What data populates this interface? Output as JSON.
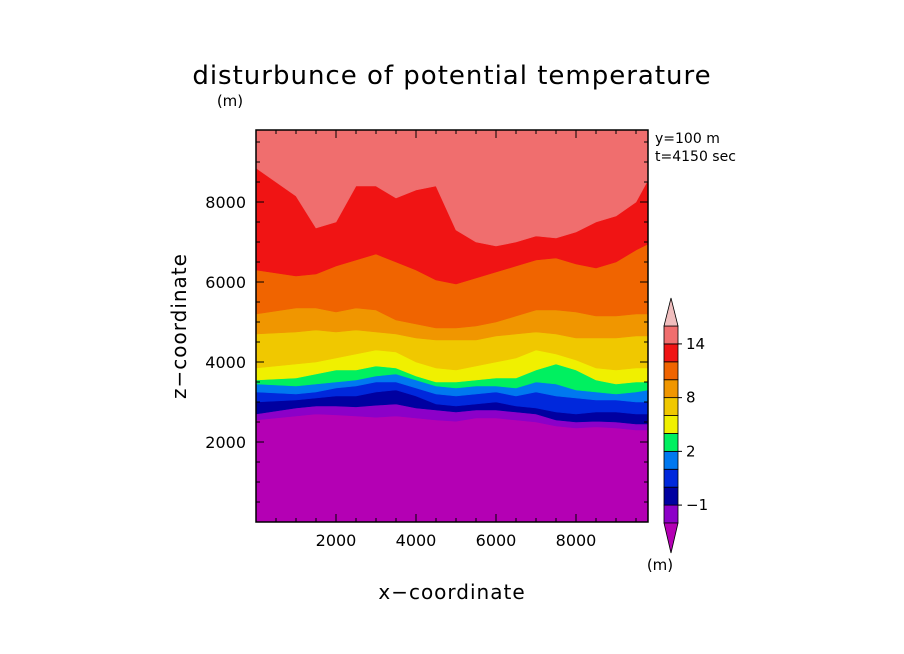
{
  "chart_data": {
    "type": "heatmap",
    "title": "disturbunce of potential temperature",
    "xlabel": "x−coordinate",
    "ylabel": "z−coordinate",
    "y_unit_label": "(m)",
    "colorbar_unit_label": "(m)",
    "annotations": [
      "y=100 m",
      "t=4150 sec"
    ],
    "xlim": [
      0,
      9800
    ],
    "ylim": [
      0,
      9800
    ],
    "x_ticks": [
      2000,
      4000,
      6000,
      8000
    ],
    "y_ticks": [
      2000,
      4000,
      6000,
      8000
    ],
    "x_tick_labels": [
      "2000",
      "4000",
      "6000",
      "8000"
    ],
    "y_tick_labels": [
      "2000",
      "4000",
      "6000",
      "8000"
    ],
    "colorbar": {
      "extend": "both",
      "levels": [
        -2,
        -1,
        0,
        1,
        2,
        4,
        6,
        8,
        10,
        12,
        14,
        16
      ],
      "tick_labels": [
        {
          "value": 14,
          "label": "14"
        },
        {
          "value": 8,
          "label": "8"
        },
        {
          "value": 2,
          "label": "2"
        },
        {
          "value": -1,
          "label": "−1"
        }
      ],
      "colors": [
        "#b400b4",
        "#8c00c8",
        "#0000a0",
        "#0028dc",
        "#0078f0",
        "#00f060",
        "#f0f000",
        "#f0c800",
        "#f09600",
        "#f06400",
        "#f01414",
        "#f06e6e",
        "#f0bebe"
      ]
    },
    "x_samples": [
      0,
      1000,
      1500,
      2000,
      2500,
      3000,
      3500,
      4000,
      4500,
      5000,
      5500,
      6000,
      6500,
      7000,
      7500,
      8000,
      8500,
      9000,
      9500,
      9800
    ],
    "contours": [
      {
        "level": -1,
        "z": [
          2550,
          2650,
          2700,
          2680,
          2650,
          2620,
          2650,
          2600,
          2550,
          2520,
          2600,
          2600,
          2550,
          2500,
          2400,
          2350,
          2380,
          2350,
          2300,
          2300
        ]
      },
      {
        "level": 0,
        "z": [
          2700,
          2850,
          2900,
          2900,
          2880,
          2920,
          2950,
          2850,
          2800,
          2750,
          2800,
          2800,
          2750,
          2700,
          2550,
          2500,
          2520,
          2500,
          2450,
          2450
        ]
      },
      {
        "level": 1,
        "z": [
          3000,
          3050,
          3100,
          3150,
          3150,
          3250,
          3300,
          3150,
          2950,
          2900,
          2950,
          3000,
          2900,
          2850,
          2750,
          2700,
          2750,
          2750,
          2700,
          2700
        ]
      },
      {
        "level": 2,
        "z": [
          3250,
          3200,
          3250,
          3350,
          3400,
          3500,
          3500,
          3350,
          3200,
          3150,
          3200,
          3250,
          3150,
          3250,
          3150,
          3100,
          3050,
          3050,
          3000,
          3000
        ]
      },
      {
        "level": 4,
        "z": [
          3450,
          3400,
          3450,
          3500,
          3550,
          3650,
          3700,
          3550,
          3400,
          3350,
          3400,
          3400,
          3350,
          3500,
          3450,
          3300,
          3250,
          3200,
          3250,
          3300
        ]
      },
      {
        "level": 6,
        "z": [
          3550,
          3600,
          3700,
          3800,
          3800,
          3900,
          3850,
          3650,
          3500,
          3500,
          3550,
          3600,
          3600,
          3800,
          3950,
          3800,
          3550,
          3450,
          3500,
          3500
        ]
      },
      {
        "level": 8,
        "z": [
          3850,
          3950,
          4000,
          4100,
          4200,
          4300,
          4250,
          4000,
          3850,
          3800,
          3900,
          4000,
          4100,
          4300,
          4200,
          4050,
          3850,
          3800,
          3850,
          3850
        ]
      },
      {
        "level": 10,
        "z": [
          4700,
          4750,
          4800,
          4750,
          4800,
          4750,
          4700,
          4600,
          4550,
          4550,
          4550,
          4650,
          4700,
          4750,
          4700,
          4600,
          4600,
          4600,
          4650,
          4650
        ]
      },
      {
        "level": 12,
        "z": [
          5200,
          5350,
          5350,
          5250,
          5350,
          5300,
          5050,
          4950,
          4850,
          4850,
          4900,
          5000,
          5150,
          5300,
          5300,
          5250,
          5150,
          5150,
          5200,
          5200
        ]
      },
      {
        "level": 14,
        "z": [
          6300,
          6150,
          6200,
          6400,
          6550,
          6700,
          6500,
          6300,
          6050,
          5950,
          6100,
          6250,
          6400,
          6550,
          6600,
          6450,
          6350,
          6500,
          6800,
          6950
        ]
      },
      {
        "level": 16,
        "z": [
          8850,
          8150,
          7350,
          7500,
          8400,
          8400,
          8100,
          8300,
          8400,
          7300,
          7000,
          6900,
          7000,
          7150,
          7100,
          7250,
          7500,
          7650,
          8000,
          8550
        ]
      }
    ]
  }
}
